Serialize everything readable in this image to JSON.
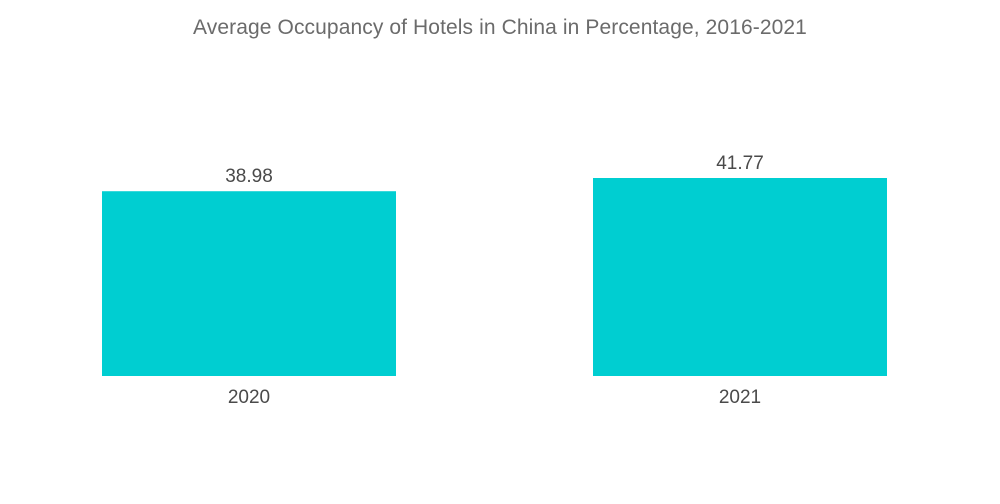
{
  "chart_data": {
    "type": "bar",
    "title": "Average Occupancy of Hotels in China in Percentage, 2016-2021",
    "categories": [
      "2020",
      "2021"
    ],
    "values": [
      38.98,
      41.77
    ],
    "value_labels": [
      "38.98",
      "41.77"
    ],
    "xlabel": "",
    "ylabel": "",
    "ylim": [
      0,
      41.77
    ],
    "bar_color": "#00CED1",
    "grid": false,
    "legend": "none"
  }
}
